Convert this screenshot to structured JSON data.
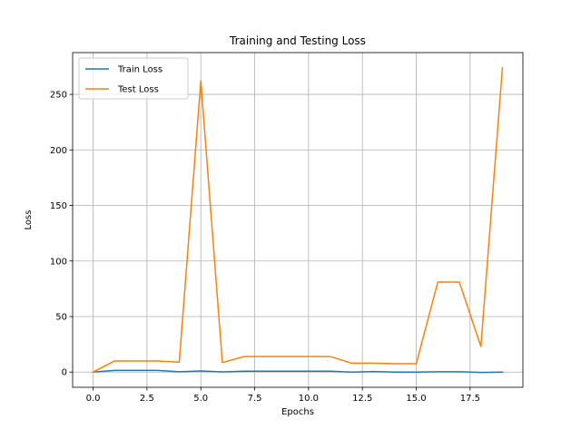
{
  "chart_data": {
    "type": "line",
    "title": "Training and Testing Loss",
    "xlabel": "Epochs",
    "ylabel": "Loss",
    "x": [
      0,
      1,
      2,
      3,
      4,
      5,
      6,
      7,
      8,
      9,
      10,
      11,
      12,
      13,
      14,
      15,
      16,
      17,
      18,
      19
    ],
    "xlim": [
      -0.95,
      19.95
    ],
    "ylim": [
      -13.7,
      287.6
    ],
    "xticks": [
      0.0,
      2.5,
      5.0,
      7.5,
      10.0,
      12.5,
      15.0,
      17.5
    ],
    "xtick_labels": [
      "0.0",
      "2.5",
      "5.0",
      "7.5",
      "10.0",
      "12.5",
      "15.0",
      "17.5"
    ],
    "yticks": [
      0,
      50,
      100,
      150,
      200,
      250
    ],
    "ytick_labels": [
      "0",
      "50",
      "100",
      "150",
      "200",
      "250"
    ],
    "grid": true,
    "legend_position": "top-left",
    "series": [
      {
        "name": "Train Loss",
        "color": "#1f77b4",
        "values": [
          0.0,
          1.5,
          1.5,
          1.5,
          0.3,
          1.0,
          0.2,
          0.8,
          0.8,
          0.8,
          0.8,
          0.8,
          0.0,
          0.5,
          0.0,
          0.0,
          0.3,
          0.3,
          -0.3,
          0.0
        ]
      },
      {
        "name": "Test Loss",
        "color": "#ff7f0e",
        "values": [
          0.0,
          10.0,
          10.0,
          10.0,
          9.0,
          262.0,
          8.5,
          14.0,
          14.0,
          14.0,
          14.0,
          14.0,
          8.0,
          8.0,
          7.5,
          7.5,
          81.0,
          81.0,
          23.0,
          274.0
        ]
      }
    ]
  }
}
